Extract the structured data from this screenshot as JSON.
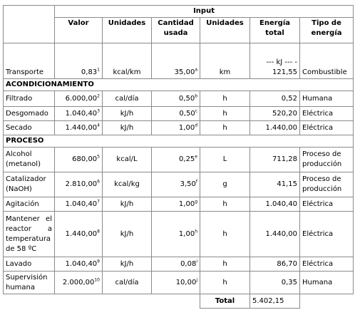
{
  "table": {
    "title": "Input",
    "headers": [
      "Valor",
      "Unidades",
      "Cantidad usada",
      "Unidades",
      "Energía total",
      "Tipo de energía"
    ],
    "rows": [
      {
        "label": "Transporte",
        "valor": "0,83",
        "valor_note": "1",
        "unidades": "kcal/km",
        "cantidad": "35,00",
        "cantidad_note": "a",
        "unidades2": "km",
        "energia": "--- kJ --- - 121,55",
        "tipo": "Combustible"
      },
      {
        "section": "ACONDICIONAMIENTO"
      },
      {
        "label": "Filtrado",
        "valor": "6.000,00",
        "valor_note": "2",
        "unidades": "cal/día",
        "cantidad": "0,50",
        "cantidad_note": "b",
        "unidades2": "h",
        "energia": "0,52",
        "tipo": "Humana"
      },
      {
        "label": "Desgomado",
        "valor": "1.040,40",
        "valor_note": "3",
        "unidades": "kJ/h",
        "cantidad": "0,50",
        "cantidad_note": "c",
        "unidades2": "h",
        "energia": "520,20",
        "tipo": "Eléctrica"
      },
      {
        "label": "Secado",
        "valor": "1.440,00",
        "valor_note": "4",
        "unidades": "kJ/h",
        "cantidad": "1,00",
        "cantidad_note": "d",
        "unidades2": "h",
        "energia": "1.440,00",
        "tipo": "Eléctrica"
      },
      {
        "section": "PROCESO"
      },
      {
        "label": "Alcohol (metanol)",
        "valor": "680,00",
        "valor_note": "5",
        "unidades": "kcal/L",
        "cantidad": "0,25",
        "cantidad_note": "e",
        "unidades2": "L",
        "energia": "711,28",
        "tipo": "Proceso de producción"
      },
      {
        "label": "Catalizador (NaOH)",
        "valor": "2.810,00",
        "valor_note": "6",
        "unidades": "kcal/kg",
        "cantidad": "3,50",
        "cantidad_note": "f",
        "unidades2": "g",
        "energia": "41,15",
        "tipo": "Proceso de producción"
      },
      {
        "label": "Agitación",
        "valor": "1.040,40",
        "valor_note": "7",
        "unidades": "kJ/h",
        "cantidad": "1,00",
        "cantidad_note": "g",
        "unidades2": "h",
        "energia": "1.040,40",
        "tipo": "Eléctrica"
      },
      {
        "label": "Mantener el reactor a temperatura de 58 ºC",
        "valor": "1.440,00",
        "valor_note": "8",
        "unidades": "kJ/h",
        "cantidad": "1,00",
        "cantidad_note": "h",
        "unidades2": "h",
        "energia": "1.440,00",
        "tipo": "Eléctrica"
      },
      {
        "label": "Lavado",
        "valor": "1.040,40",
        "valor_note": "9",
        "unidades": "kJ/h",
        "cantidad": "0,08",
        "cantidad_note": "i",
        "unidades2": "h",
        "energia": "86,70",
        "tipo": "Eléctrica"
      },
      {
        "label": "Supervisión humana",
        "valor": "2.000,00",
        "valor_note": "10",
        "unidades": "cal/día",
        "cantidad": "10,00",
        "cantidad_note": "j",
        "unidades2": "h",
        "energia": "0,35",
        "tipo": "Humana"
      }
    ],
    "total_label": "Total",
    "total_value": "5.402,15"
  }
}
